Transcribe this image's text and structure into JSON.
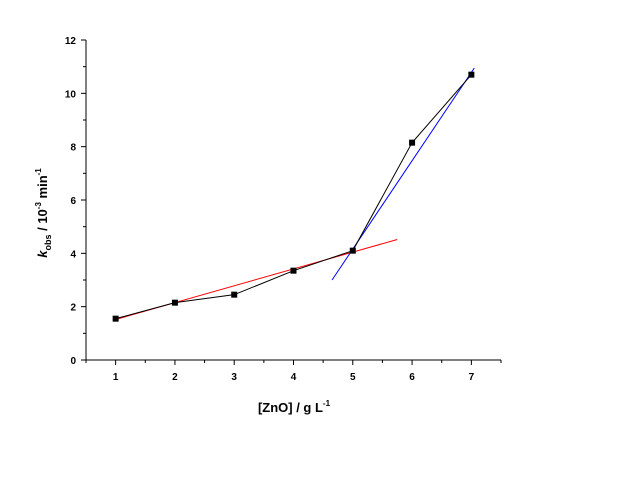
{
  "chart_data": {
    "type": "line",
    "title": "",
    "xlabel": {
      "main": "[ZnO] / g L",
      "sup": "-1"
    },
    "ylabel": {
      "k": "k",
      "sub": "obs",
      "mid": " / 10",
      "sup1": "-3",
      "unit": " min",
      "sup2": "-1"
    },
    "xlim": [
      0.5,
      7.5
    ],
    "ylim": [
      0,
      12
    ],
    "xticks": [
      1,
      2,
      3,
      4,
      5,
      6,
      7
    ],
    "yticks": [
      0,
      2,
      4,
      6,
      8,
      10,
      12
    ],
    "grid": false,
    "series": [
      {
        "marker": "square",
        "color": "#000000",
        "x": [
          1,
          2,
          3,
          4,
          5,
          6,
          7
        ],
        "y": [
          1.55,
          2.15,
          2.45,
          3.35,
          4.1,
          8.15,
          10.7
        ]
      }
    ],
    "fit_lines": [
      {
        "color": "#ff0000",
        "x": [
          1,
          5.75
        ],
        "y": [
          1.52,
          4.52
        ]
      },
      {
        "color": "#0000ff",
        "x": [
          4.65,
          7.05
        ],
        "y": [
          3.0,
          10.95
        ]
      }
    ]
  }
}
